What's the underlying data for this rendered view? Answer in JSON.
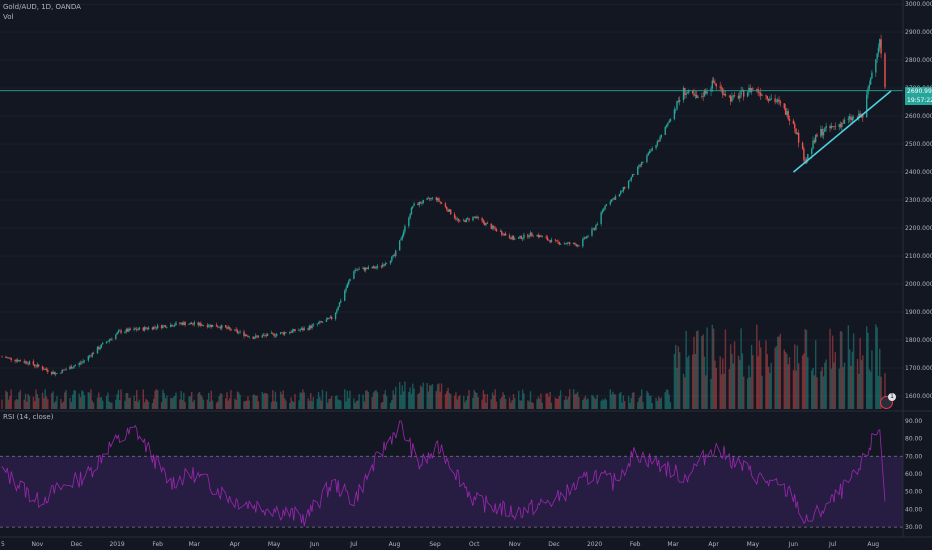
{
  "header": {
    "symbol_line": "Gold/AUD, 1D, OANDA",
    "volume_label": "Vol",
    "rsi_label": "RSI (14, close)"
  },
  "price_tags": {
    "last_price": "2690.998",
    "countdown": "19:57:22"
  },
  "alert": {
    "icon": "alarm-clock-icon",
    "count": "1"
  },
  "colors": {
    "background": "#131722",
    "up": "#26a69a",
    "down": "#ef5350",
    "trendline": "#4dd0e1",
    "rsi_line": "#9c27b0",
    "rsi_band": "#2a1e47"
  },
  "chart_data": [
    {
      "type": "candlestick",
      "title": "Gold/AUD, 1D, OANDA",
      "y_axis_ticks": [
        3000,
        2900,
        2800,
        2700,
        2600,
        2500,
        2400,
        2300,
        2200,
        2100,
        2000,
        1900,
        1800,
        1700,
        1600
      ],
      "y_axis_tick_labels": [
        "3000.000",
        "2900.000",
        "2800.000",
        "2700.000",
        "2600.000",
        "2500.000",
        "2400.000",
        "2300.000",
        "2200.000",
        "2100.000",
        "2000.000",
        "1900.000",
        "1800.000",
        "1700.000",
        "1600.000"
      ],
      "ylim": [
        1550,
        3015
      ],
      "x_axis_labels": [
        "5",
        "Nov",
        "Dec",
        "2019",
        "Feb",
        "Mar",
        "Apr",
        "May",
        "Jun",
        "Jul",
        "Aug",
        "Sep",
        "Oct",
        "Nov",
        "Dec",
        "2020",
        "Feb",
        "Mar",
        "Apr",
        "May",
        "Jun",
        "Jul",
        "Aug"
      ],
      "approx_close_path": {
        "dates": [
          "2018-10-05",
          "2018-10-25",
          "2018-11-15",
          "2018-12-05",
          "2018-12-20",
          "2019-01-03",
          "2019-01-20",
          "2019-02-20",
          "2019-03-20",
          "2019-04-15",
          "2019-05-01",
          "2019-05-25",
          "2019-06-15",
          "2019-07-01",
          "2019-07-20",
          "2019-08-01",
          "2019-08-15",
          "2019-09-01",
          "2019-09-10",
          "2019-09-20",
          "2019-10-01",
          "2019-10-15",
          "2019-11-01",
          "2019-11-15",
          "2019-12-01",
          "2019-12-20",
          "2020-01-01",
          "2020-01-10",
          "2020-01-20",
          "2020-02-01",
          "2020-02-20",
          "2020-03-09",
          "2020-03-20",
          "2020-04-01",
          "2020-04-15",
          "2020-05-01",
          "2020-05-20",
          "2020-06-01",
          "2020-06-10",
          "2020-06-20",
          "2020-07-01",
          "2020-07-15",
          "2020-07-24",
          "2020-08-01",
          "2020-08-06",
          "2020-08-10"
        ],
        "close": [
          1740,
          1720,
          1680,
          1720,
          1780,
          1830,
          1840,
          1860,
          1850,
          1810,
          1820,
          1840,
          1880,
          2050,
          2060,
          2100,
          2280,
          2310,
          2270,
          2220,
          2240,
          2200,
          2160,
          2180,
          2150,
          2140,
          2200,
          2290,
          2320,
          2400,
          2520,
          2690,
          2660,
          2720,
          2660,
          2700,
          2650,
          2580,
          2440,
          2540,
          2560,
          2590,
          2600,
          2780,
          2870,
          2691
        ]
      },
      "last_price": 2690.998,
      "last_price_label": "2690.998",
      "countdown_label": "19:57:22",
      "horizontal_level": 2690.998,
      "trendline": {
        "from": {
          "date": "2020-06-01",
          "value": 2400
        },
        "to": {
          "date": "2020-08-10",
          "value": 2690
        }
      }
    },
    {
      "type": "bar",
      "title": "Vol",
      "note": "Volume histogram overlaid at bottom of price pane; activity elevated from Mar 2020 onward."
    },
    {
      "type": "line",
      "title": "RSI (14, close)",
      "y_axis_ticks": [
        90,
        80,
        70,
        60,
        50,
        40,
        30
      ],
      "y_axis_tick_labels": [
        "90.00",
        "80.00",
        "70.00",
        "60.00",
        "50.00",
        "40.00",
        "30.00"
      ],
      "ylim": [
        25,
        95
      ],
      "band": [
        30,
        70
      ],
      "approx_values": {
        "dates": [
          "2018-10-05",
          "2018-11-01",
          "2018-12-10",
          "2018-12-25",
          "2019-01-15",
          "2019-02-10",
          "2019-03-01",
          "2019-04-01",
          "2019-05-01",
          "2019-05-25",
          "2019-06-15",
          "2019-07-01",
          "2019-07-20",
          "2019-08-05",
          "2019-08-20",
          "2019-09-05",
          "2019-10-01",
          "2019-11-01",
          "2019-12-01",
          "2020-01-01",
          "2020-01-15",
          "2020-02-01",
          "2020-02-20",
          "2020-03-10",
          "2020-04-01",
          "2020-05-01",
          "2020-06-01",
          "2020-06-10",
          "2020-07-01",
          "2020-07-20",
          "2020-08-01",
          "2020-08-06",
          "2020-08-10"
        ],
        "values": [
          62,
          45,
          60,
          75,
          85,
          55,
          60,
          45,
          40,
          35,
          55,
          45,
          70,
          88,
          65,
          75,
          45,
          38,
          45,
          60,
          55,
          72,
          65,
          58,
          75,
          60,
          48,
          32,
          45,
          60,
          80,
          86,
          47
        ]
      }
    }
  ]
}
